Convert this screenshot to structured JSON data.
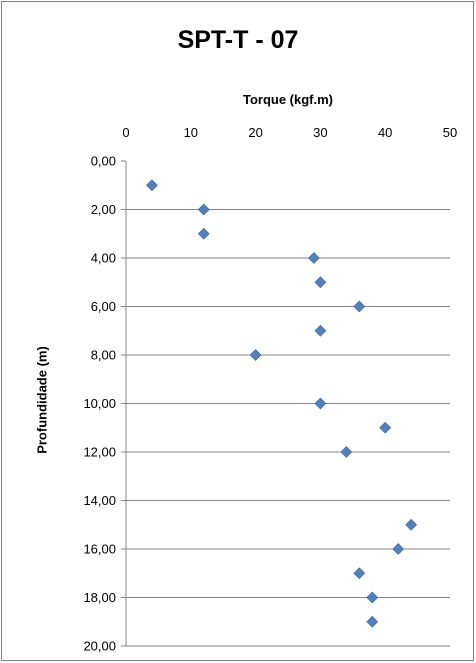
{
  "chart_data": {
    "type": "scatter",
    "title": "SPT-T - 07",
    "xlabel": "Torque (kgf.m)",
    "ylabel": "Profundidade (m)",
    "xlim": [
      0,
      50
    ],
    "ylim": [
      0,
      20
    ],
    "y_inverted": true,
    "x_axis_position": "top",
    "x_ticks": [
      "0",
      "10",
      "20",
      "30",
      "40",
      "50"
    ],
    "y_ticks": [
      "0,00",
      "2,00",
      "4,00",
      "6,00",
      "8,00",
      "10,00",
      "12,00",
      "14,00",
      "16,00",
      "18,00",
      "20,00"
    ],
    "grid": "horizontal",
    "marker": "diamond",
    "marker_color": "#4f81bd",
    "series": [
      {
        "points": [
          {
            "x": 4,
            "y": 1
          },
          {
            "x": 12,
            "y": 2
          },
          {
            "x": 12,
            "y": 3
          },
          {
            "x": 29,
            "y": 4
          },
          {
            "x": 30,
            "y": 5
          },
          {
            "x": 36,
            "y": 6
          },
          {
            "x": 30,
            "y": 7
          },
          {
            "x": 20,
            "y": 8
          },
          {
            "x": 30,
            "y": 10
          },
          {
            "x": 40,
            "y": 11
          },
          {
            "x": 34,
            "y": 12
          },
          {
            "x": 44,
            "y": 15
          },
          {
            "x": 42,
            "y": 16
          },
          {
            "x": 36,
            "y": 17
          },
          {
            "x": 38,
            "y": 18
          },
          {
            "x": 38,
            "y": 19
          }
        ]
      }
    ]
  }
}
